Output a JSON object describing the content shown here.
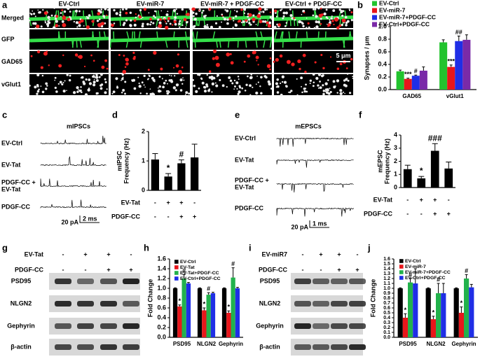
{
  "panel_labels": [
    "a",
    "b",
    "c",
    "d",
    "e",
    "f",
    "g",
    "h",
    "i",
    "j"
  ],
  "microscopy": {
    "columns": [
      "EV-Ctrl",
      "EV-miR-7",
      "EV-miR-7 + PDGF-CC",
      "EV-Ctrl + PDGF-CC"
    ],
    "rows": [
      {
        "name": "Merged",
        "color": "#000000"
      },
      {
        "name": "GFP",
        "color": "#2db84d"
      },
      {
        "name": "GAD65",
        "color": "#e0201b"
      },
      {
        "name": "vGlut1",
        "color": "#888888"
      }
    ],
    "scale_bar": "5 μm"
  },
  "traces": [
    {
      "title": "mIPSCs",
      "rows": [
        [
          "EV-Ctrl"
        ],
        [
          "EV-Tat"
        ],
        [
          "PDGF-CC +",
          "EV-Tat"
        ],
        [
          "PDGF-CC"
        ]
      ],
      "scale": {
        "current": "20 pA",
        "time": "2 ms"
      }
    },
    {
      "title": "mEPSCs",
      "rows": [
        [
          "EV-Ctrl"
        ],
        [
          "EV-Tat"
        ],
        [
          "PDGF-CC +",
          "EV-Tat"
        ],
        [
          "PDGF-CC"
        ]
      ],
      "scale": {
        "current": "20 pA",
        "time": "1 ms"
      }
    }
  ],
  "blots": [
    {
      "conditions": [
        {
          "name": "EV-Tat",
          "signs": [
            "-",
            "+",
            "+",
            "-"
          ]
        },
        {
          "name": "PDGF-CC",
          "signs": [
            "-",
            "-",
            "+",
            "+"
          ]
        }
      ],
      "bands": [
        "PSD95",
        "NLGN2",
        "Gephyrin",
        "β-actin"
      ]
    },
    {
      "conditions": [
        {
          "name": "EV-miR7",
          "signs": [
            "-",
            "+",
            "+",
            "-"
          ]
        },
        {
          "name": "PDGF-CC",
          "signs": [
            "-",
            "-",
            "+",
            "+"
          ]
        }
      ],
      "bands": [
        "PSD95",
        "NLGN2",
        "Gephyrin",
        "β-actin"
      ]
    }
  ],
  "chart_data": [
    {
      "type": "grouped_bar",
      "y_label": "Synapses / μm",
      "categories": [
        "GAD65",
        "vGlut1"
      ],
      "ylim": [
        0,
        1.0
      ],
      "yticks": [
        {
          "value": 0,
          "label": "0.0"
        },
        0.2,
        0.4,
        0.6,
        0.8,
        {
          "value": 1.0,
          "label": "1.0"
        }
      ],
      "series": [
        {
          "name": "EV-Ctrl",
          "color": "#22c32e",
          "values": [
            0.29,
            0.75
          ],
          "errors": [
            0.02,
            0.04
          ],
          "annotations": [
            null,
            null
          ]
        },
        {
          "name": "EV-miR-7",
          "color": "#e8161b",
          "values": [
            0.17,
            0.36
          ],
          "errors": [
            0.01,
            0.03
          ],
          "annotations": [
            "***",
            "***"
          ]
        },
        {
          "name": "EV-miR-7+PDGF-CC",
          "color": "#1f2ee6",
          "values": [
            0.22,
            0.77
          ],
          "errors": [
            0.01,
            0.08
          ],
          "annotations": [
            "#",
            "##"
          ]
        },
        {
          "name": "EV-Ctrl+PDGF-CC",
          "color": "#7a2aa8",
          "values": [
            0.3,
            0.79
          ],
          "errors": [
            0.06,
            0.08
          ],
          "annotations": [
            null,
            null
          ]
        }
      ]
    },
    {
      "type": "bar",
      "y_label": [
        "mIPSC",
        "Frequency (Hz)"
      ],
      "color": "#000000",
      "ylim": [
        0,
        2
      ],
      "yticks": [
        0,
        1,
        2
      ],
      "values": [
        1.05,
        0.47,
        0.92,
        1.12
      ],
      "errors": [
        0.2,
        0.1,
        0.12,
        0.45
      ],
      "annotations": [
        null,
        "*",
        "#",
        null
      ],
      "conditions": [
        {
          "name": "EV-Tat",
          "signs": [
            "-",
            "+",
            "+",
            "-"
          ]
        },
        {
          "name": "PDGF-CC",
          "signs": [
            "-",
            "-",
            "+",
            "+"
          ]
        }
      ]
    },
    {
      "type": "bar",
      "y_label": [
        "mEPSC",
        "Frequency (Hz)"
      ],
      "color": "#000000",
      "ylim": [
        0,
        4
      ],
      "yticks": [
        0,
        1,
        2,
        3,
        4
      ],
      "values": [
        1.4,
        0.7,
        2.8,
        1.45
      ],
      "errors": [
        0.3,
        0.15,
        0.55,
        0.5
      ],
      "annotations": [
        null,
        "*",
        "###",
        null
      ],
      "conditions": [
        {
          "name": "EV-Tat",
          "signs": [
            "-",
            "+",
            "+",
            "-"
          ]
        },
        {
          "name": "PDGF-CC",
          "signs": [
            "-",
            "-",
            "+",
            "+"
          ]
        }
      ]
    },
    {
      "type": "grouped_bar",
      "y_label": "Fold Change",
      "categories": [
        "PSD95",
        "NLGN2",
        "Gephyrin"
      ],
      "ylim": [
        0,
        1.6
      ],
      "yticks": [
        {
          "value": 0,
          "label": "0.0"
        },
        0.2,
        0.4,
        0.6,
        0.8,
        {
          "value": 1.0,
          "label": "1.0"
        },
        1.2,
        1.4,
        1.6
      ],
      "series": [
        {
          "name": "EV-Ctrl",
          "color": "#000000",
          "values": [
            1.0,
            1.0,
            1.0
          ],
          "errors": [
            0.01,
            0.01,
            0.01
          ],
          "annotations": [
            null,
            null,
            null
          ]
        },
        {
          "name": "EV-Tat",
          "color": "#e8161b",
          "values": [
            0.63,
            0.55,
            0.5
          ],
          "errors": [
            0.03,
            0.05,
            0.04
          ],
          "annotations": [
            "*",
            "*",
            "*"
          ]
        },
        {
          "name": "EV-Tat+PDGF-CC",
          "color": "#22b24c",
          "values": [
            1.2,
            0.87,
            1.22
          ],
          "errors": [
            0.08,
            0.04,
            0.2
          ],
          "annotations": [
            "#",
            "#",
            "#"
          ]
        },
        {
          "name": "EV-Ctrl+PDGF-CC",
          "color": "#1f2ee6",
          "values": [
            1.1,
            0.9,
            1.0
          ],
          "errors": [
            0.02,
            0.02,
            0.02
          ],
          "annotations": [
            null,
            null,
            null
          ]
        }
      ]
    },
    {
      "type": "grouped_bar",
      "y_label": "Fold Change",
      "categories": [
        "PSD95",
        "NLGN2",
        "Gephyrin"
      ],
      "ylim": [
        0,
        1.6
      ],
      "yticks": [
        {
          "value": 0,
          "label": "0.0"
        },
        0.1,
        0.2,
        0.3,
        0.4,
        0.5,
        0.6,
        0.7,
        0.8,
        0.9,
        {
          "value": 1.0,
          "label": "1.0"
        },
        1.1,
        1.2,
        1.3,
        1.4,
        1.5,
        1.6
      ],
      "series": [
        {
          "name": "EV-Ctrl",
          "color": "#000000",
          "values": [
            1.0,
            1.0,
            1.0
          ],
          "errors": [
            0.01,
            0.01,
            0.01
          ],
          "annotations": [
            null,
            null,
            null
          ]
        },
        {
          "name": "EV-miR-7",
          "color": "#e8161b",
          "values": [
            0.4,
            0.37,
            0.5
          ],
          "errors": [
            0.08,
            0.06,
            0.12
          ],
          "annotations": [
            "*",
            "*",
            "*"
          ]
        },
        {
          "name": "EV-miR-7+PDGF-CC",
          "color": "#22b24c",
          "values": [
            1.12,
            0.9,
            1.2
          ],
          "errors": [
            0.08,
            0.2,
            0.08
          ],
          "annotations": [
            "#",
            "#",
            "#"
          ]
        },
        {
          "name": "EV-Ctrl+PDGF-CC",
          "color": "#1f2ee6",
          "values": [
            1.1,
            0.9,
            1.02
          ],
          "errors": [
            0.3,
            0.2,
            0.06
          ],
          "annotations": [
            null,
            null,
            null
          ]
        }
      ]
    }
  ]
}
